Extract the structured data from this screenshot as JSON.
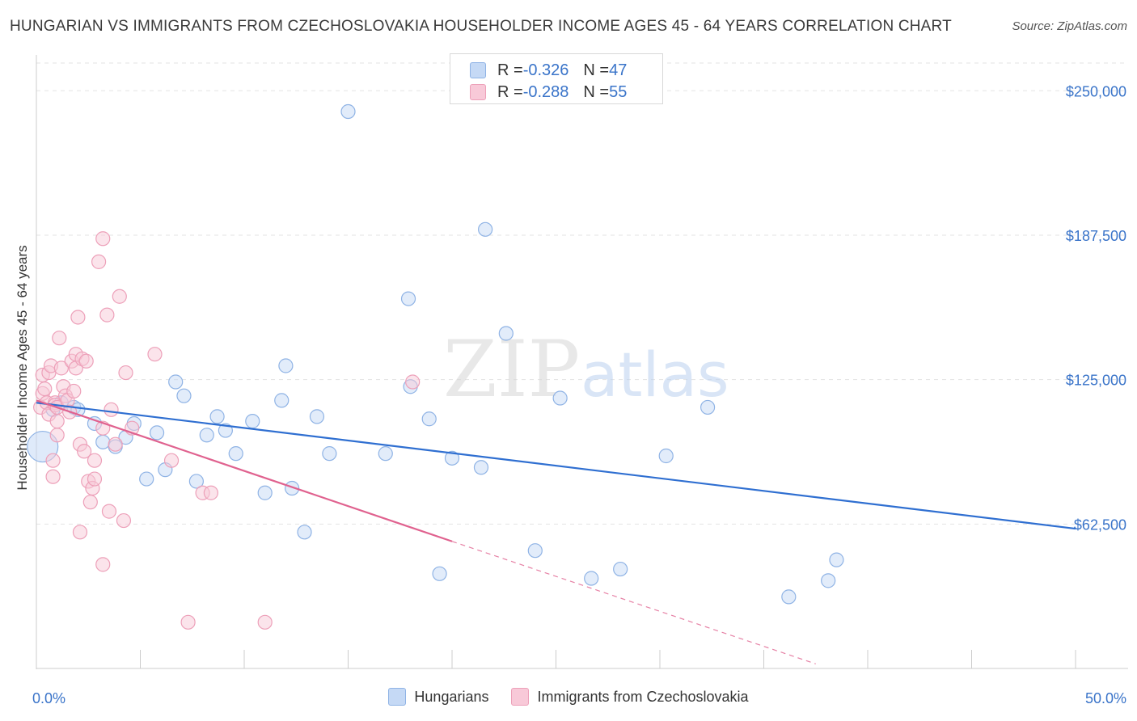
{
  "header": {
    "title": "HUNGARIAN VS IMMIGRANTS FROM CZECHOSLOVAKIA HOUSEHOLDER INCOME AGES 45 - 64 YEARS CORRELATION CHART",
    "source": "Source: ZipAtlas.com"
  },
  "watermark": {
    "zip": "ZIP",
    "atlas": "atlas"
  },
  "legend": {
    "r_label": "R = ",
    "n_label": "N = ",
    "series": [
      {
        "name": "Hungarians",
        "r": "-0.326",
        "n": "47"
      },
      {
        "name": "Immigrants from Czechoslovakia",
        "r": "-0.288",
        "n": "55"
      }
    ]
  },
  "colors": {
    "blue_fill": "#c5d9f5",
    "blue_stroke": "#8fb3e5",
    "blue_line": "#2f6fd1",
    "pink_fill": "#f8c9d8",
    "pink_stroke": "#eda0b9",
    "pink_line": "#e0628f",
    "axis_label": "#3a74c9"
  },
  "chart_data": {
    "type": "scatter",
    "title": "HUNGARIAN VS IMMIGRANTS FROM CZECHOSLOVAKIA HOUSEHOLDER INCOME AGES 45 - 64 YEARS CORRELATION CHART",
    "xlabel": "",
    "ylabel": "Householder Income Ages 45 - 64 years",
    "xlim": [
      0,
      50
    ],
    "ylim": [
      0,
      262000
    ],
    "x_tick_labels": [
      "0.0%",
      "50.0%"
    ],
    "y_ticks": [
      62500,
      125000,
      187500,
      250000
    ],
    "y_tick_labels": [
      "$62,500",
      "$125,000",
      "$187,500",
      "$250,000"
    ],
    "series": [
      {
        "name": "Hungarians",
        "points": [
          [
            0.3,
            96000
          ],
          [
            0.8,
            112000
          ],
          [
            1.2,
            115000
          ],
          [
            1.8,
            113000
          ],
          [
            2.0,
            112000
          ],
          [
            2.8,
            106000
          ],
          [
            3.2,
            98000
          ],
          [
            3.8,
            96000
          ],
          [
            4.3,
            100000
          ],
          [
            4.7,
            106000
          ],
          [
            5.3,
            82000
          ],
          [
            5.8,
            102000
          ],
          [
            6.2,
            86000
          ],
          [
            6.7,
            124000
          ],
          [
            7.1,
            118000
          ],
          [
            7.7,
            81000
          ],
          [
            8.2,
            101000
          ],
          [
            8.7,
            109000
          ],
          [
            9.1,
            103000
          ],
          [
            9.6,
            93000
          ],
          [
            10.4,
            107000
          ],
          [
            11.0,
            76000
          ],
          [
            11.8,
            116000
          ],
          [
            12.0,
            131000
          ],
          [
            12.3,
            78000
          ],
          [
            12.9,
            59000
          ],
          [
            13.5,
            109000
          ],
          [
            14.1,
            93000
          ],
          [
            15.0,
            241000
          ],
          [
            16.8,
            93000
          ],
          [
            17.9,
            160000
          ],
          [
            18.0,
            122000
          ],
          [
            18.9,
            108000
          ],
          [
            19.4,
            41000
          ],
          [
            20.0,
            91000
          ],
          [
            21.4,
            87000
          ],
          [
            21.6,
            190000
          ],
          [
            22.6,
            145000
          ],
          [
            24.0,
            51000
          ],
          [
            25.2,
            117000
          ],
          [
            26.7,
            39000
          ],
          [
            28.1,
            43000
          ],
          [
            30.3,
            92000
          ],
          [
            32.3,
            113000
          ],
          [
            36.2,
            31000
          ],
          [
            38.1,
            38000
          ],
          [
            38.5,
            47000
          ]
        ],
        "trend": {
          "x": [
            0,
            50
          ],
          "y": [
            115000,
            60500
          ]
        }
      },
      {
        "name": "Immigrants from Czechoslovakia",
        "points": [
          [
            0.2,
            113000
          ],
          [
            0.3,
            127000
          ],
          [
            0.3,
            119000
          ],
          [
            0.4,
            121000
          ],
          [
            0.5,
            115000
          ],
          [
            0.6,
            128000
          ],
          [
            0.6,
            110000
          ],
          [
            0.7,
            131000
          ],
          [
            0.8,
            90000
          ],
          [
            0.8,
            83000
          ],
          [
            0.9,
            115000
          ],
          [
            0.9,
            114000
          ],
          [
            1.0,
            113000
          ],
          [
            1.0,
            101000
          ],
          [
            1.0,
            107000
          ],
          [
            1.1,
            143000
          ],
          [
            1.2,
            130000
          ],
          [
            1.3,
            122000
          ],
          [
            1.4,
            118000
          ],
          [
            1.5,
            116000
          ],
          [
            1.6,
            111000
          ],
          [
            1.7,
            133000
          ],
          [
            1.8,
            120000
          ],
          [
            1.9,
            136000
          ],
          [
            1.9,
            130000
          ],
          [
            2.0,
            152000
          ],
          [
            2.1,
            97000
          ],
          [
            2.1,
            59000
          ],
          [
            2.2,
            134000
          ],
          [
            2.3,
            94000
          ],
          [
            2.4,
            133000
          ],
          [
            2.5,
            81000
          ],
          [
            2.6,
            72000
          ],
          [
            2.7,
            78000
          ],
          [
            2.8,
            90000
          ],
          [
            2.8,
            82000
          ],
          [
            3.0,
            176000
          ],
          [
            3.2,
            104000
          ],
          [
            3.2,
            186000
          ],
          [
            3.2,
            45000
          ],
          [
            3.4,
            153000
          ],
          [
            3.5,
            68000
          ],
          [
            3.6,
            112000
          ],
          [
            3.8,
            97000
          ],
          [
            4.0,
            161000
          ],
          [
            4.2,
            64000
          ],
          [
            4.3,
            128000
          ],
          [
            4.6,
            104000
          ],
          [
            5.7,
            136000
          ],
          [
            6.5,
            90000
          ],
          [
            7.3,
            20000
          ],
          [
            8.0,
            76000
          ],
          [
            8.4,
            76000
          ],
          [
            11.0,
            20000
          ],
          [
            18.1,
            124000
          ]
        ],
        "trend": {
          "x": [
            0,
            20
          ],
          "y": [
            116000,
            55000
          ],
          "dashed_x": [
            20,
            37.5
          ],
          "dashed_y": [
            55000,
            2000
          ]
        }
      }
    ]
  }
}
